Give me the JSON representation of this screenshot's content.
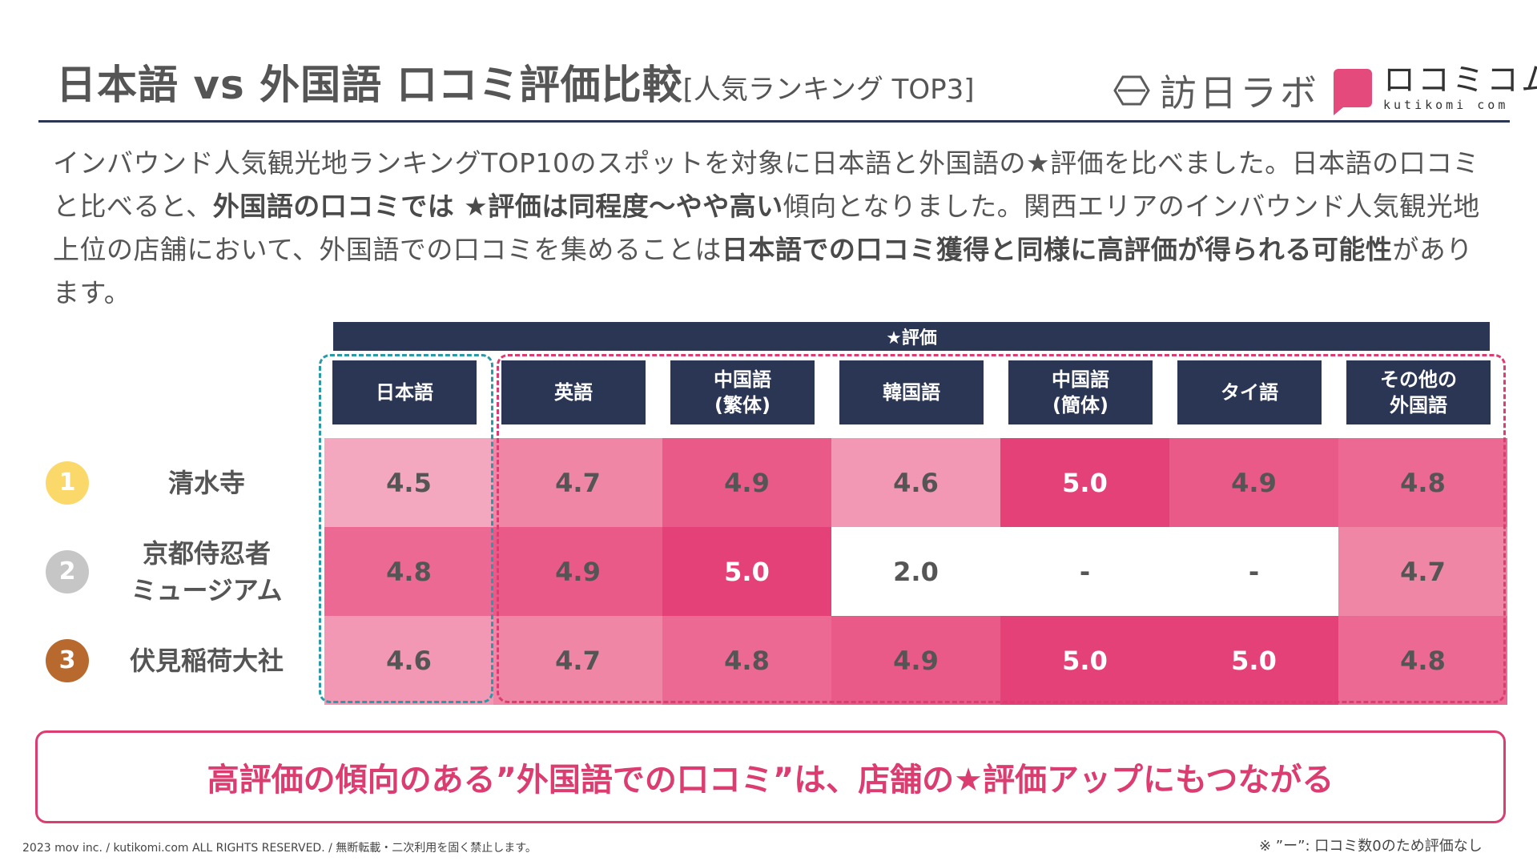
{
  "title": {
    "main": "日本語 vs 外国語 口コミ評価比較",
    "sub": "[人気ランキング TOP3]"
  },
  "logos": {
    "houjin": "訪日ラボ",
    "kutikomi": "ロコミコム",
    "kutikomi_sub": "kutikomi com"
  },
  "description": {
    "p1": "インバウンド人気観光地ランキングTOP10のスポットを対象に日本語と外国語の★評価を比べました。日本語の口コミと比べると、",
    "b1": "外国語の口コミでは ★評価は同程度〜やや高い",
    "p2": "傾向となりました。関西エリアのインバウンド人気観光地上位の店舗において、外国語での口コミを集めることは",
    "b2": "日本語での口コミ獲得と同様に高評価が得られる可能性",
    "p3": "があります。"
  },
  "colors": {
    "navy": "#2b3655",
    "accent": "#dc3d70",
    "teal": "#2a9aa6",
    "rank": [
      "#fbd86a",
      "#c6c6c6",
      "#b8692e"
    ],
    "cell": {
      "4.5": "#f4a8c0",
      "4.6": "#f297b4",
      "4.7": "#ef86a6",
      "4.8": "#ec6993",
      "4.9": "#e95a88",
      "5.0": "#e44179",
      "2.0": "#ffffff",
      "-": "#ffffff"
    }
  },
  "chart_data": {
    "type": "table",
    "title": "★評価",
    "columns": [
      "日本語",
      "英語",
      "中国語\n(繁体)",
      "韓国語",
      "中国語\n(簡体)",
      "タイ語",
      "その他の\n外国語"
    ],
    "rows": [
      {
        "rank": "1",
        "name": "清水寺",
        "values": [
          "4.5",
          "4.7",
          "4.9",
          "4.6",
          "5.0",
          "4.9",
          "4.8"
        ]
      },
      {
        "rank": "2",
        "name": "京都侍忍者\nミュージアム",
        "values": [
          "4.8",
          "4.9",
          "5.0",
          "2.0",
          "-",
          "-",
          "4.7"
        ]
      },
      {
        "rank": "3",
        "name": "伏見稲荷大社",
        "values": [
          "4.6",
          "4.7",
          "4.8",
          "4.9",
          "5.0",
          "5.0",
          "4.8"
        ]
      }
    ]
  },
  "callout": "高評価の傾向のある”外国語での口コミ”は、店舗の★評価アップにもつながる",
  "footer": {
    "copyright": "2023 mov inc. / kutikomi.com ALL RIGHTS RESERVED. / 無断転載・二次利用を固く禁止します。",
    "note": "※ ”ー”: 口コミ数0のため評価なし"
  }
}
